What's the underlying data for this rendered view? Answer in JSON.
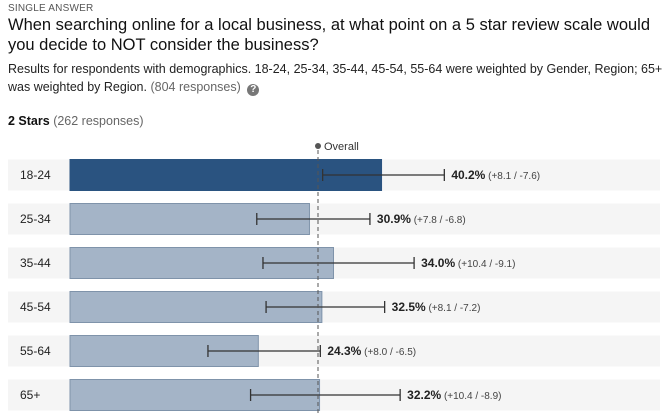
{
  "header": {
    "kicker": "SINGLE ANSWER",
    "question": "When searching online for a local business, at what point on a 5 star review scale would you decide to NOT consider the business?",
    "subtitle": "Results for respondents with demographics. 18-24, 25-34, 35-44, 45-54, 55-64 were weighted by Gender, Region; 65+ was weighted by Region.",
    "responses": "(804 responses)",
    "help_icon": "question-circle-icon"
  },
  "section": {
    "label": "2 Stars",
    "responses": "(262 responses)"
  },
  "chart_data": {
    "type": "bar",
    "orientation": "horizontal",
    "reference_label": "Overall",
    "reference_value": 32.0,
    "categories": [
      "18-24",
      "25-34",
      "35-44",
      "45-54",
      "55-64",
      "65+"
    ],
    "values": [
      40.2,
      30.9,
      34.0,
      32.5,
      24.3,
      32.2
    ],
    "value_labels": [
      "40.2%",
      "30.9%",
      "34.0%",
      "32.5%",
      "24.3%",
      "32.2%"
    ],
    "error_plus": [
      8.1,
      7.8,
      10.4,
      8.1,
      8.0,
      10.4
    ],
    "error_minus": [
      7.6,
      6.8,
      9.1,
      7.2,
      6.5,
      8.9
    ],
    "error_labels": [
      "(+8.1 / -7.6)",
      "(+7.8 / -6.8)",
      "(+10.4 / -9.1)",
      "(+8.1 / -7.2)",
      "(+8.0 / -6.5)",
      "(+10.4 / -8.9)"
    ],
    "highlight_index": 0,
    "colors": {
      "highlight": "#2a5380",
      "bar": "#a4b4c7",
      "bar_border": "#7f93aa",
      "row_bg": "#f5f5f5",
      "errorbar": "#333333",
      "reference": "#555555"
    }
  }
}
